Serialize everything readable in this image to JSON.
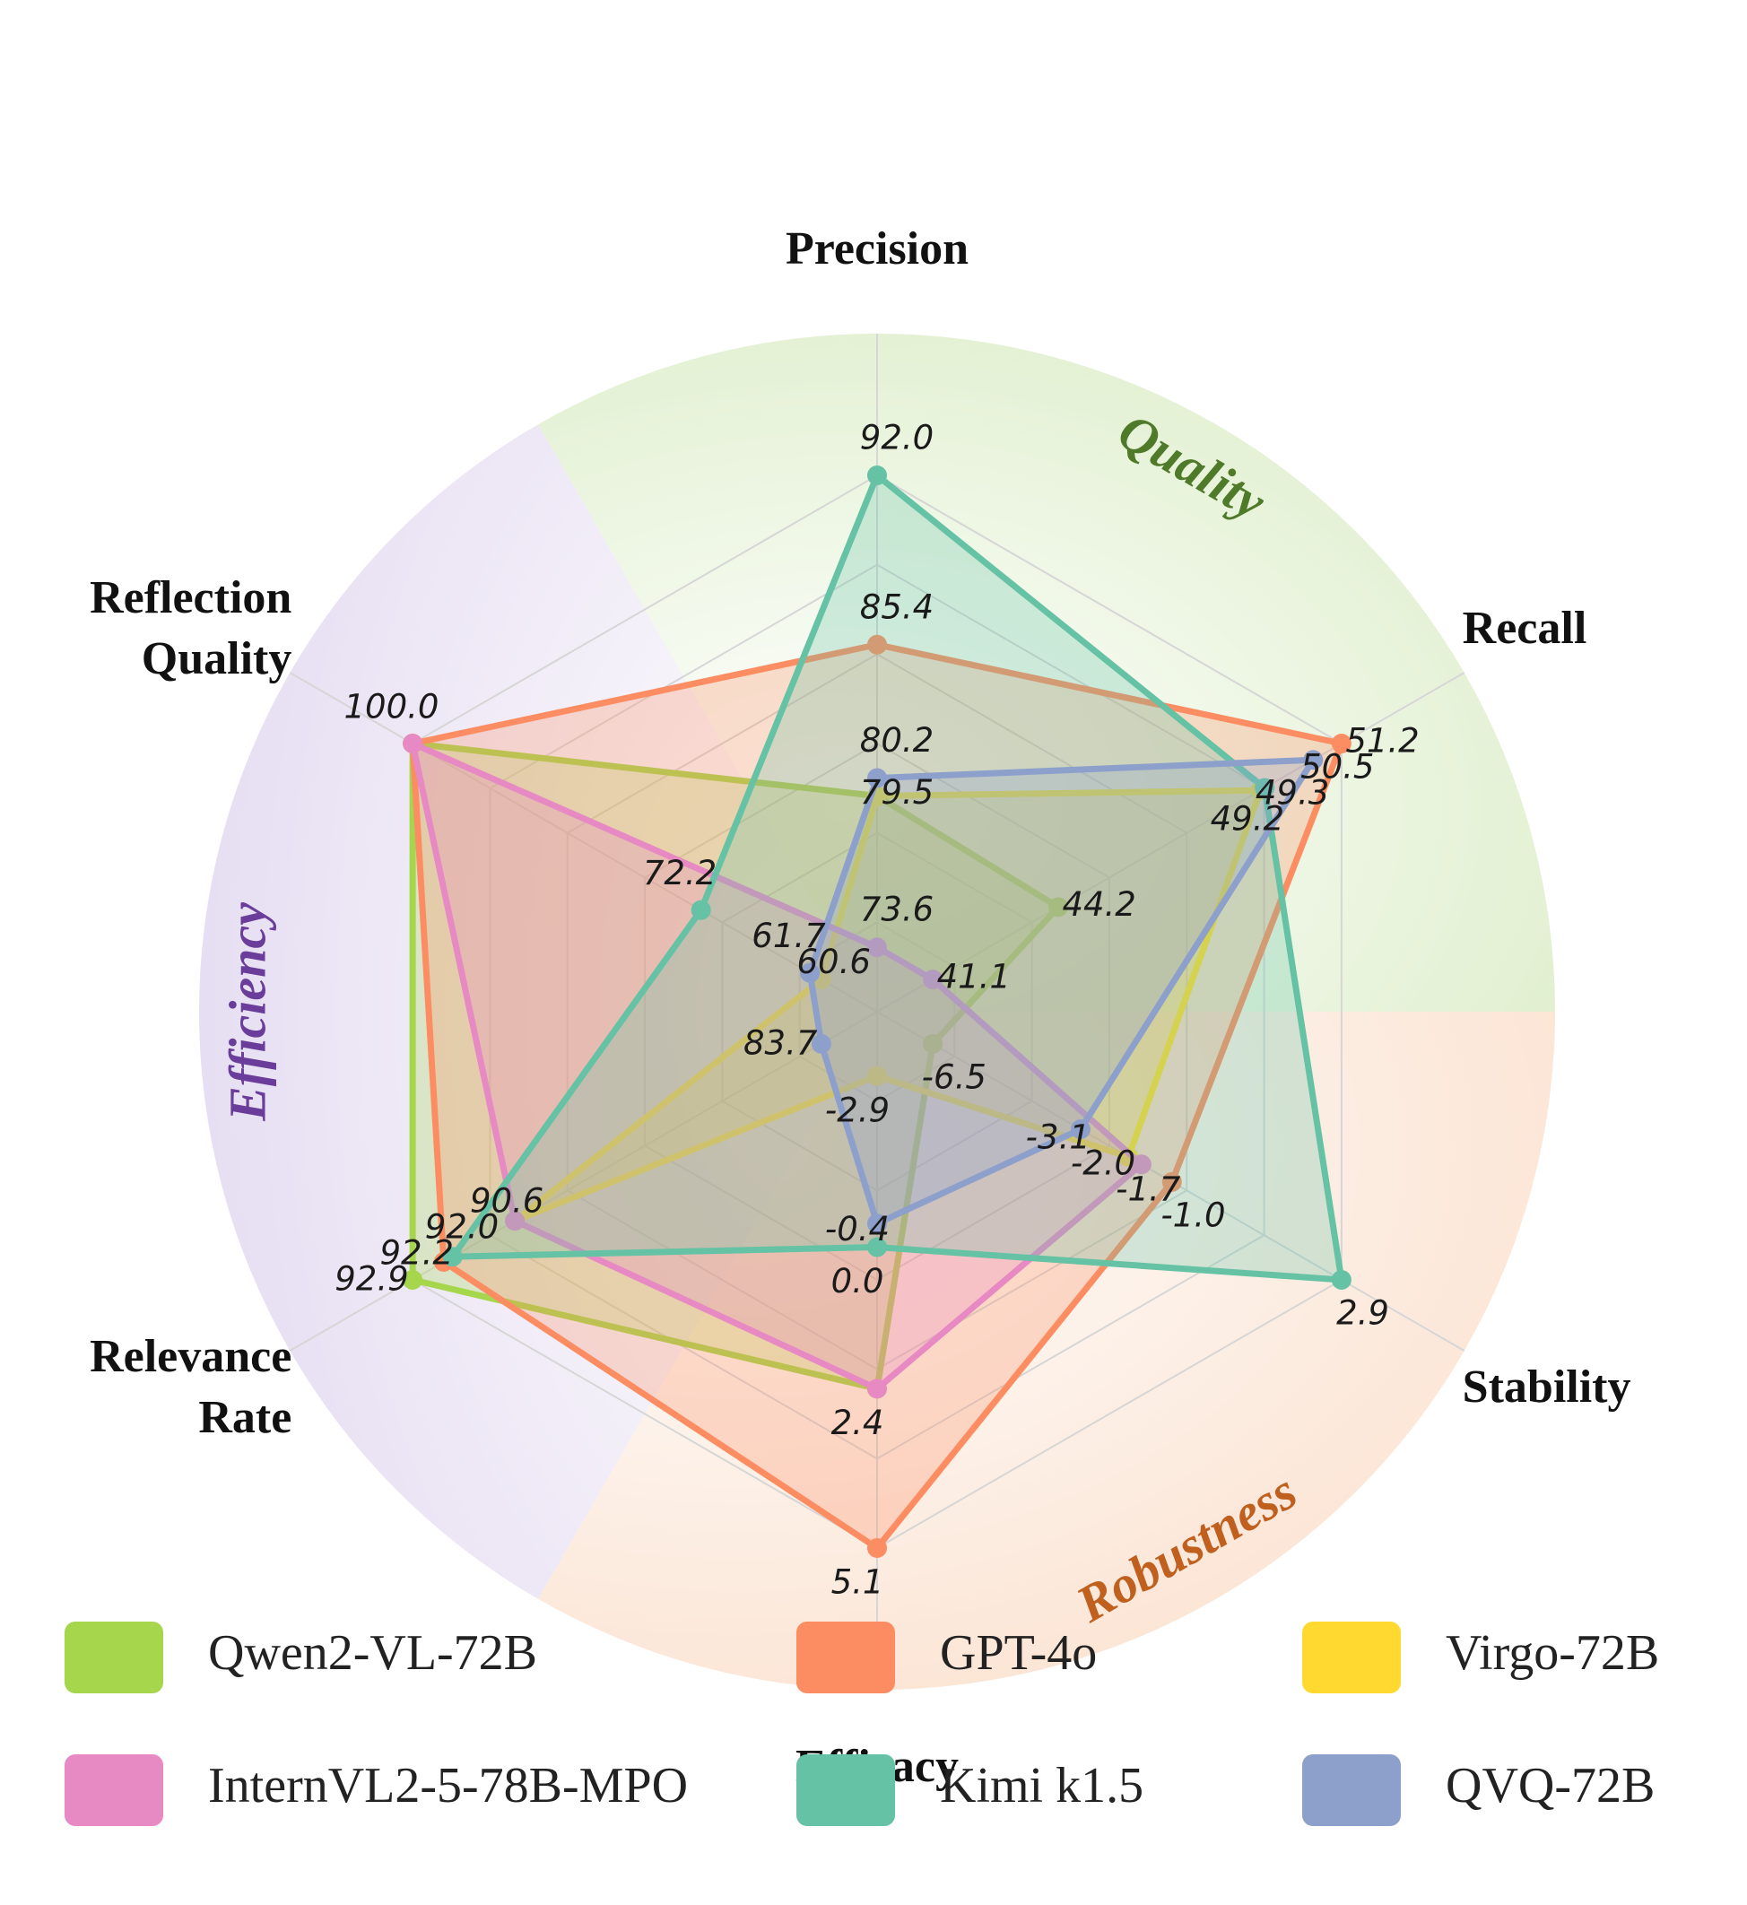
{
  "chart_data": {
    "type": "radar",
    "axes": [
      {
        "name": "Precision",
        "title_lines": [
          "Precision"
        ]
      },
      {
        "name": "Recall",
        "title_lines": [
          "Recall"
        ]
      },
      {
        "name": "Stability",
        "title_lines": [
          "Stability"
        ]
      },
      {
        "name": "Efficacy",
        "title_lines": [
          "Efficacy"
        ]
      },
      {
        "name": "Relevance Rate",
        "title_lines": [
          "Relevance",
          "Rate"
        ]
      },
      {
        "name": "Reflection Quality",
        "title_lines": [
          "Reflection",
          "Quality"
        ]
      }
    ],
    "groups": [
      {
        "label": "Quality",
        "color": "#4f7a2a"
      },
      {
        "label": "Robustness",
        "color": "#c0601e"
      },
      {
        "label": "Efficiency",
        "color": "#6a3d9a"
      }
    ],
    "series": [
      {
        "name": "Qwen2-VL-72B",
        "color": "#a5d64c",
        "values": [
          79.5,
          44.2,
          -6.5,
          2.4,
          92.9,
          100.0
        ],
        "labels": [
          "79.5",
          "44.2",
          "-6.5",
          "2.4",
          "92.9",
          "100.0"
        ]
      },
      {
        "name": "GPT-4o",
        "color": "#fc8d62",
        "values": [
          85.4,
          51.2,
          -1.0,
          5.1,
          92.2,
          100.0
        ],
        "labels": [
          "85.4",
          "51.2",
          "-1.0",
          "5.1",
          "92.2",
          ""
        ]
      },
      {
        "name": "Virgo-72B",
        "color": "#ffd92f",
        "values": [
          79.5,
          49.2,
          -2.0,
          -2.9,
          90.6,
          60.6
        ],
        "labels": [
          "",
          "49.2",
          "-2.0",
          "-2.9",
          "90.6",
          "60.6"
        ]
      },
      {
        "name": "InternVL2-5-78B-MPO",
        "color": "#e78ac3",
        "values": [
          73.6,
          41.1,
          -1.7,
          2.4,
          90.6,
          100.0
        ],
        "labels": [
          "73.6",
          "41.1",
          "-1.7",
          "",
          "",
          ""
        ]
      },
      {
        "name": "Kimi k1.5",
        "color": "#66c2a5",
        "values": [
          92.0,
          49.3,
          2.9,
          0.0,
          92.0,
          72.2
        ],
        "labels": [
          "92.0",
          "49.3",
          "2.9",
          "0.0",
          "92.0",
          "72.2"
        ]
      },
      {
        "name": "QVQ-72B",
        "color": "#8da0cb",
        "values": [
          80.2,
          50.5,
          -3.1,
          -0.4,
          83.7,
          61.7
        ],
        "labels": [
          "80.2",
          "50.5",
          "-3.1",
          "-0.4",
          "83.7",
          "61.7"
        ]
      }
    ]
  }
}
